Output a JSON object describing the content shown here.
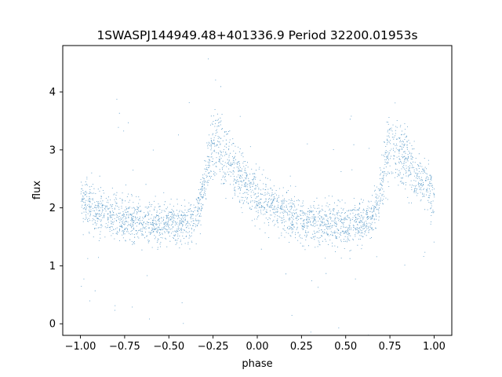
{
  "chart_data": {
    "type": "scatter",
    "title": "1SWASPJ144949.48+401336.9 Period 32200.01953s",
    "xlabel": "phase",
    "ylabel": "flux",
    "xlim": [
      -1.1,
      1.1
    ],
    "ylim": [
      -0.2,
      4.8
    ],
    "xticks": [
      -1.0,
      -0.75,
      -0.5,
      -0.25,
      0.0,
      0.25,
      0.5,
      0.75,
      1.0
    ],
    "xtick_labels": [
      "−1.00",
      "−0.75",
      "−0.50",
      "−0.25",
      "0.00",
      "0.25",
      "0.50",
      "0.75",
      "1.00"
    ],
    "yticks": [
      0,
      1,
      2,
      3,
      4
    ],
    "ytick_labels": [
      "0",
      "1",
      "2",
      "3",
      "4"
    ],
    "grid": false,
    "marker_color": "#1f77b4",
    "point_count_approx": 30000,
    "light_curve_shape": {
      "phase": [
        -1.0,
        -0.9,
        -0.8,
        -0.7,
        -0.6,
        -0.5,
        -0.45,
        -0.4,
        -0.35,
        -0.3,
        -0.25,
        -0.2,
        -0.1,
        0.0,
        0.1,
        0.2,
        0.3,
        0.4,
        0.5,
        0.55,
        0.6,
        0.65,
        0.7,
        0.75,
        0.8,
        0.9,
        1.0
      ],
      "median_flux": [
        2.1,
        1.95,
        1.85,
        1.78,
        1.74,
        1.72,
        1.72,
        1.73,
        1.85,
        2.4,
        3.1,
        2.95,
        2.55,
        2.2,
        1.98,
        1.85,
        1.78,
        1.74,
        1.72,
        1.72,
        1.73,
        1.85,
        2.4,
        3.1,
        2.95,
        2.55,
        2.2
      ],
      "scatter_sigma": 0.18
    }
  }
}
